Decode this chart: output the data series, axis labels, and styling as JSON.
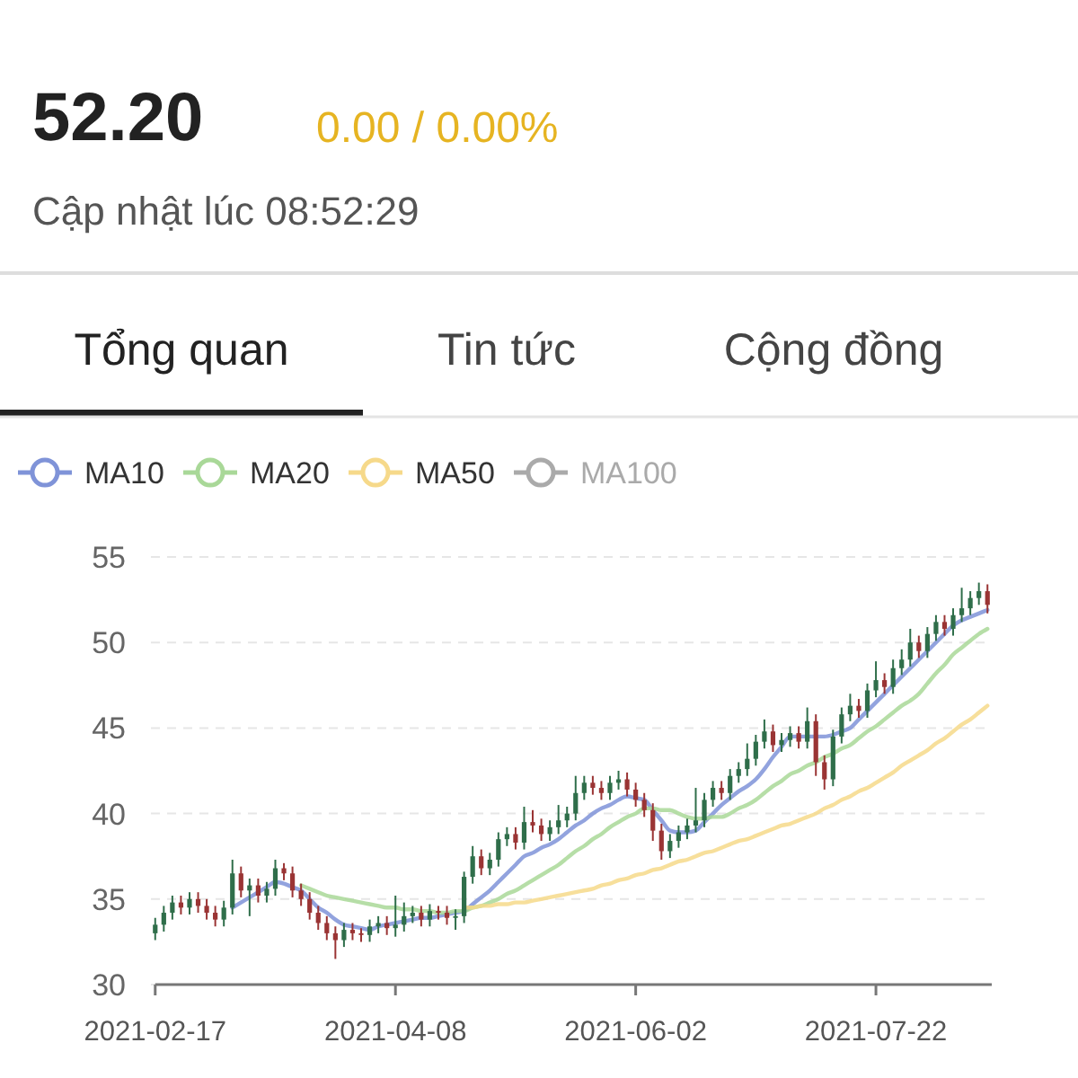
{
  "chart_data": {
    "type": "candlestick",
    "title": "52.20",
    "subtitle": "0.00 / 0.00%",
    "annotations": [
      "Cập nhật lúc 08:52:29",
      "Tổng quan",
      "Tin tức",
      "Cộng đồng"
    ],
    "categories": [
      "2021-02-17",
      null,
      null,
      null,
      null,
      null,
      null,
      null,
      null,
      null,
      null,
      null,
      null,
      null,
      null,
      null,
      null,
      null,
      null,
      null,
      null,
      null,
      null,
      null,
      null,
      null,
      null,
      null,
      "2021-04-08",
      null,
      null,
      null,
      null,
      null,
      null,
      null,
      null,
      null,
      null,
      null,
      null,
      null,
      null,
      null,
      null,
      null,
      null,
      null,
      null,
      null,
      null,
      null,
      null,
      null,
      null,
      null,
      "2021-06-02",
      null,
      null,
      null,
      null,
      null,
      null,
      null,
      null,
      null,
      null,
      null,
      null,
      null,
      null,
      null,
      null,
      null,
      null,
      null,
      null,
      null,
      null,
      null,
      null,
      null,
      null,
      null,
      "2021-07-22",
      null,
      null,
      null,
      null,
      null,
      null,
      null,
      null,
      null,
      null,
      null,
      null,
      null
    ],
    "ohlc": [
      [
        33.0,
        33.9,
        32.6,
        33.5
      ],
      [
        33.5,
        34.6,
        33.1,
        34.2
      ],
      [
        34.2,
        35.2,
        33.8,
        34.8
      ],
      [
        34.8,
        35.2,
        34.1,
        34.5
      ],
      [
        34.5,
        35.4,
        34.1,
        35
      ],
      [
        35,
        35.4,
        34.2,
        34.6
      ],
      [
        34.6,
        35,
        33.8,
        34.2
      ],
      [
        34.2,
        34.6,
        33.4,
        33.8
      ],
      [
        33.8,
        34.9,
        33.4,
        34.5
      ],
      [
        34.5,
        37.3,
        34.1,
        36.5
      ],
      [
        36.5,
        36.9,
        35.1,
        35.5
      ],
      [
        35.5,
        36.2,
        34,
        35.8
      ],
      [
        35.8,
        36.2,
        34.8,
        35.2
      ],
      [
        35.2,
        36,
        34.8,
        35.6
      ],
      [
        35.6,
        37.3,
        35.2,
        36.8
      ],
      [
        36.8,
        37.1,
        36.1,
        36.5
      ],
      [
        36.5,
        36.9,
        35.1,
        35.5
      ],
      [
        35.5,
        35.9,
        34.6,
        35
      ],
      [
        35,
        35.4,
        33.8,
        34.2
      ],
      [
        34.2,
        34.6,
        33.2,
        33.6
      ],
      [
        33.6,
        34,
        32.6,
        33
      ],
      [
        33,
        33.4,
        31.5,
        32.6
      ],
      [
        32.6,
        33.6,
        32.2,
        33.2
      ],
      [
        33.2,
        33.6,
        32.6,
        33
      ],
      [
        33,
        33.3,
        32.5,
        32.9
      ],
      [
        32.9,
        33.8,
        32.5,
        33.4
      ],
      [
        33.4,
        34,
        33,
        33.6
      ],
      [
        33.6,
        34,
        32.9,
        33.3
      ],
      [
        33.3,
        35.2,
        32.8,
        33.5
      ],
      [
        33.5,
        34.8,
        33.1,
        34
      ],
      [
        34,
        34.6,
        33.6,
        34.2
      ],
      [
        34.2,
        34.6,
        33.4,
        33.8
      ],
      [
        33.8,
        34.7,
        33.4,
        34.3
      ],
      [
        34.3,
        34.6,
        33.8,
        34.2
      ],
      [
        34.2,
        34.6,
        33.5,
        33.9
      ],
      [
        33.9,
        34.4,
        33.2,
        34
      ],
      [
        34,
        36.6,
        33.6,
        36.3
      ],
      [
        36.3,
        38.1,
        35.9,
        37.5
      ],
      [
        37.5,
        37.9,
        36.4,
        36.8
      ],
      [
        36.8,
        37.7,
        36.4,
        37.3
      ],
      [
        37.3,
        38.9,
        36.9,
        38.5
      ],
      [
        38.5,
        39.2,
        38.1,
        38.8
      ],
      [
        38.8,
        39.2,
        37.9,
        38.3
      ],
      [
        38.3,
        40.4,
        37.9,
        39.5
      ],
      [
        39.5,
        40.2,
        38.9,
        39.3
      ],
      [
        39.3,
        39.7,
        38.4,
        38.8
      ],
      [
        38.8,
        39.6,
        38.4,
        39.2
      ],
      [
        39.2,
        40.5,
        38.8,
        39.6
      ],
      [
        39.6,
        40.4,
        39.2,
        40
      ],
      [
        40,
        42.2,
        39.6,
        41.2
      ],
      [
        41.2,
        42.2,
        40.8,
        41.8
      ],
      [
        41.8,
        42.2,
        41.1,
        41.5
      ],
      [
        41.5,
        41.9,
        40.8,
        41.2
      ],
      [
        41.2,
        42.2,
        40.8,
        41.8
      ],
      [
        41.8,
        42.5,
        41.4,
        42
      ],
      [
        42,
        42.4,
        41,
        41.4
      ],
      [
        41.4,
        41.8,
        40.4,
        40.8
      ],
      [
        40.8,
        41.2,
        39.8,
        40.2
      ],
      [
        40.2,
        40.6,
        38.4,
        39
      ],
      [
        39,
        39.4,
        37.3,
        37.8
      ],
      [
        37.8,
        38.8,
        37.4,
        38.4
      ],
      [
        38.4,
        39.3,
        38,
        38.9
      ],
      [
        38.9,
        39.7,
        38.5,
        39.3
      ],
      [
        39.3,
        41.5,
        38.9,
        39.6
      ],
      [
        39.6,
        41.2,
        39.2,
        40.8
      ],
      [
        40.8,
        41.9,
        40.4,
        41.5
      ],
      [
        41.5,
        41.9,
        40.8,
        41.2
      ],
      [
        41.2,
        42.6,
        40.8,
        42.2
      ],
      [
        42.2,
        43,
        41.8,
        42.6
      ],
      [
        42.6,
        44.1,
        42.2,
        43.2
      ],
      [
        43.2,
        44.6,
        42.8,
        44.2
      ],
      [
        44.2,
        45.5,
        43.8,
        44.8
      ],
      [
        44.8,
        45.2,
        43.6,
        44
      ],
      [
        44,
        44.7,
        43.6,
        44.3
      ],
      [
        44.3,
        45.1,
        43.9,
        44.7
      ],
      [
        44.7,
        45.1,
        43.8,
        44.2
      ],
      [
        44.2,
        46.2,
        43.8,
        45.4
      ],
      [
        45.4,
        45.8,
        42.2,
        43
      ],
      [
        43,
        43.4,
        41.4,
        42
      ],
      [
        42,
        44.9,
        41.6,
        44.5
      ],
      [
        44.5,
        46.2,
        44.1,
        45.8
      ],
      [
        45.8,
        47,
        45.4,
        46.3
      ],
      [
        46.3,
        46.7,
        45.6,
        46
      ],
      [
        46,
        47.6,
        45.6,
        47.2
      ],
      [
        47.2,
        48.9,
        46.8,
        47.8
      ],
      [
        47.8,
        48.2,
        47,
        47.4
      ],
      [
        47.4,
        49,
        47,
        48.5
      ],
      [
        48.5,
        49.6,
        48.1,
        49
      ],
      [
        49,
        50.8,
        48.6,
        50
      ],
      [
        50,
        50.4,
        49.1,
        49.5
      ],
      [
        49.5,
        50.9,
        49.1,
        50.5
      ],
      [
        50.5,
        51.6,
        50.1,
        51.2
      ],
      [
        51.2,
        51.6,
        50.4,
        50.8
      ],
      [
        50.8,
        52,
        50.4,
        51.6
      ],
      [
        51.6,
        53.2,
        51.2,
        52
      ],
      [
        52,
        53,
        51.6,
        52.6
      ],
      [
        52.6,
        53.5,
        52.2,
        53
      ],
      [
        53,
        53.4,
        51.7,
        52.2
      ]
    ],
    "series": [
      {
        "type": "line",
        "name": "MA10",
        "color": "#7f93d8",
        "values": [
          null,
          null,
          null,
          null,
          null,
          null,
          null,
          null,
          null,
          34.5,
          34.8,
          35.1,
          35.4,
          35.7,
          36,
          35.9,
          35.7,
          35.5,
          35,
          34.5,
          34.2,
          33.8,
          33.5,
          33.4,
          33.3,
          33.2,
          33.4,
          33.5,
          33.6,
          33.7,
          33.8,
          33.9,
          33.9,
          34,
          34.1,
          34.2,
          34.3,
          34.7,
          35.1,
          35.5,
          36,
          36.5,
          37,
          37.5,
          37.7,
          38,
          38.2,
          38.5,
          38.9,
          39.3,
          39.6,
          40,
          40.3,
          40.5,
          40.8,
          41,
          40.9,
          40.8,
          40.2,
          39.6,
          39,
          38.9,
          38.9,
          39,
          39.5,
          40,
          40.5,
          40.9,
          41.3,
          41.6,
          42,
          42.6,
          43.3,
          43.9,
          44.5,
          44.5,
          44.5,
          44.5,
          44.5,
          44.6,
          44.8,
          45,
          45.5,
          46,
          46.5,
          47,
          47.5,
          48,
          48.5,
          49,
          49.5,
          50,
          50.5,
          51,
          51.3,
          51.5,
          51.7,
          51.9
        ]
      },
      {
        "type": "line",
        "name": "MA20",
        "color": "#a9d898",
        "values": [
          null,
          null,
          null,
          null,
          null,
          null,
          null,
          null,
          null,
          null,
          null,
          null,
          null,
          null,
          null,
          null,
          null,
          35.8,
          35.6,
          35.4,
          35.2,
          35.1,
          35,
          34.9,
          34.8,
          34.7,
          34.6,
          34.5,
          34.5,
          34.4,
          34.4,
          34.3,
          34.3,
          34.2,
          34.2,
          34.3,
          34.3,
          34.5,
          34.6,
          34.8,
          35,
          35.3,
          35.5,
          35.8,
          36.1,
          36.4,
          36.7,
          37,
          37.4,
          37.8,
          38.1,
          38.5,
          38.8,
          39.2,
          39.5,
          39.8,
          40,
          40.3,
          40.3,
          40.2,
          40.2,
          40,
          39.8,
          39.7,
          39.7,
          39.8,
          39.8,
          40,
          40.3,
          40.5,
          40.8,
          41.2,
          41.6,
          41.9,
          42.3,
          42.5,
          42.8,
          43,
          43.3,
          43.5,
          43.8,
          44,
          44.4,
          44.8,
          45.1,
          45.5,
          45.9,
          46.3,
          46.6,
          47,
          47.6,
          48.2,
          48.7,
          49.3,
          49.7,
          50.1,
          50.5,
          50.8
        ]
      },
      {
        "type": "line",
        "name": "MA50",
        "color": "#f6d98a",
        "values": [
          null,
          null,
          null,
          null,
          null,
          null,
          null,
          null,
          null,
          null,
          null,
          null,
          null,
          null,
          null,
          null,
          null,
          null,
          null,
          null,
          null,
          null,
          null,
          null,
          null,
          null,
          null,
          null,
          null,
          null,
          null,
          null,
          null,
          null,
          null,
          null,
          34.5,
          34.5,
          34.6,
          34.6,
          34.7,
          34.7,
          34.8,
          34.8,
          34.9,
          35,
          35.1,
          35.2,
          35.3,
          35.4,
          35.5,
          35.6,
          35.8,
          35.9,
          36.1,
          36.2,
          36.4,
          36.5,
          36.7,
          36.8,
          37,
          37.2,
          37.3,
          37.5,
          37.7,
          37.8,
          38,
          38.2,
          38.4,
          38.5,
          38.7,
          38.9,
          39.1,
          39.3,
          39.4,
          39.6,
          39.8,
          40,
          40.3,
          40.5,
          40.8,
          41,
          41.3,
          41.5,
          41.8,
          42.1,
          42.4,
          42.8,
          43.1,
          43.4,
          43.7,
          44.1,
          44.4,
          44.8,
          45.2,
          45.5,
          45.9,
          46.3
        ]
      },
      {
        "type": "line",
        "name": "MA100",
        "color": "#aaaaaa",
        "values": [
          null,
          null,
          null,
          null,
          null,
          null,
          null,
          null,
          null,
          null,
          null,
          null,
          null,
          null,
          null,
          null,
          null,
          null,
          null,
          null,
          null,
          null,
          null,
          null,
          null,
          null,
          null,
          null,
          null,
          null,
          null,
          null,
          null,
          null,
          null,
          null,
          null,
          null,
          null,
          null,
          null,
          null,
          null,
          null,
          null,
          null,
          null,
          null,
          null,
          null,
          null,
          null,
          null,
          null,
          null,
          null,
          null,
          null,
          null,
          null,
          null,
          null,
          null,
          null,
          null,
          null,
          null,
          null,
          null,
          null,
          null,
          null,
          null,
          null,
          null,
          null,
          null,
          null,
          null,
          null,
          null,
          null,
          null,
          null,
          null,
          null,
          null,
          null,
          null,
          null,
          null,
          null,
          null,
          null,
          null,
          null,
          null,
          null
        ]
      }
    ],
    "ylim": [
      30,
      55
    ],
    "yticks": [
      30,
      35,
      40,
      45,
      50,
      55
    ],
    "grid": "y",
    "legend": "top left"
  }
}
